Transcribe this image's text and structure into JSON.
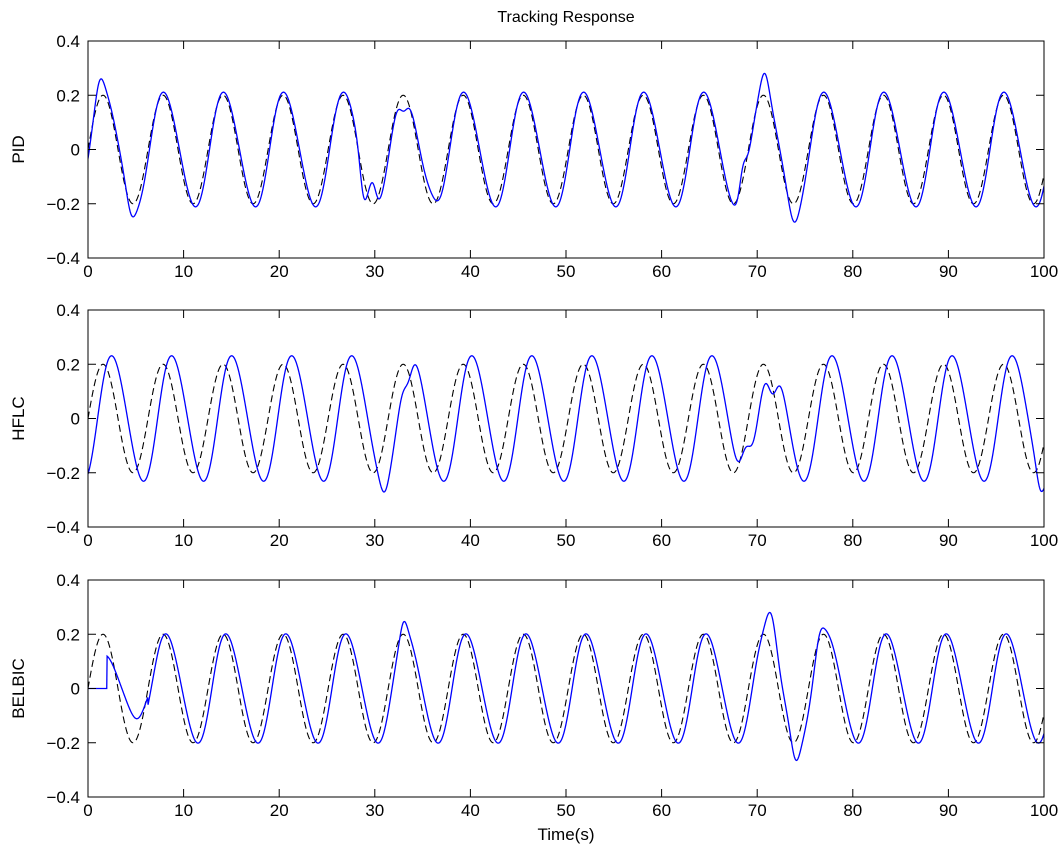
{
  "chart_data": {
    "type": "line",
    "title": "Tracking Response",
    "xlabel": "Time(s)",
    "colors": {
      "response": "#0000ff",
      "reference": "#000000"
    },
    "line_styles": {
      "response": "solid",
      "reference": "dashed"
    },
    "xlim": [
      0,
      100
    ],
    "ylim": [
      -0.4,
      0.4
    ],
    "xticks": [
      0,
      10,
      20,
      30,
      40,
      50,
      60,
      70,
      80,
      90,
      100
    ],
    "yticks": [
      -0.4,
      -0.2,
      0,
      0.2,
      0.4
    ],
    "xtick_labels": [
      "0",
      "10",
      "20",
      "30",
      "40",
      "50",
      "60",
      "70",
      "80",
      "90",
      "100"
    ],
    "ytick_labels": [
      "−0.4",
      "−0.2",
      "0",
      "0.2",
      "0.4"
    ],
    "grid": false,
    "reference": {
      "amplitude": 0.2,
      "period": 6.28,
      "phase": 0.0
    },
    "panels": [
      {
        "ylabel": "PID",
        "response": {
          "amplitude": 0.21,
          "lag": 0.15,
          "disturbances": [
            {
              "t": 1.2,
              "dy": 0.06,
              "w": 0.6
            },
            {
              "t": 4.5,
              "dy": -0.05,
              "w": 0.6
            },
            {
              "t": 28.8,
              "dy": -0.1,
              "w": 0.5
            },
            {
              "t": 29.8,
              "dy": 0.08,
              "w": 0.5
            },
            {
              "t": 33.0,
              "dy": -0.07,
              "w": 0.6
            },
            {
              "t": 36.0,
              "dy": 0.03,
              "w": 0.8
            },
            {
              "t": 68.5,
              "dy": 0.09,
              "w": 0.5
            },
            {
              "t": 70.8,
              "dy": 0.07,
              "w": 0.6
            },
            {
              "t": 73.8,
              "dy": -0.06,
              "w": 0.7
            }
          ]
        }
      },
      {
        "ylabel": "HFLC",
        "response": {
          "amplitude": 0.23,
          "lag": 1.0,
          "disturbances": [
            {
              "t": 31.0,
              "dy": -0.04,
              "w": 0.6
            },
            {
              "t": 33.5,
              "dy": -0.08,
              "w": 0.6
            },
            {
              "t": 68.8,
              "dy": 0.12,
              "w": 0.7
            },
            {
              "t": 71.6,
              "dy": -0.14,
              "w": 0.7
            },
            {
              "t": 99.6,
              "dy": -0.05,
              "w": 0.5
            }
          ]
        }
      },
      {
        "ylabel": "BELBIC",
        "response": {
          "amplitude": 0.2,
          "lag": 0.4,
          "start_delay": 2.0,
          "early_amplitude": 0.12,
          "disturbances": [
            {
              "t": 6.0,
              "dy": 0.03,
              "w": 0.8
            },
            {
              "t": 33.0,
              "dy": 0.05,
              "w": 0.5
            },
            {
              "t": 71.5,
              "dy": 0.1,
              "w": 0.7
            },
            {
              "t": 74.0,
              "dy": -0.07,
              "w": 0.6
            },
            {
              "t": 76.5,
              "dy": 0.05,
              "w": 0.6
            }
          ]
        }
      }
    ]
  }
}
